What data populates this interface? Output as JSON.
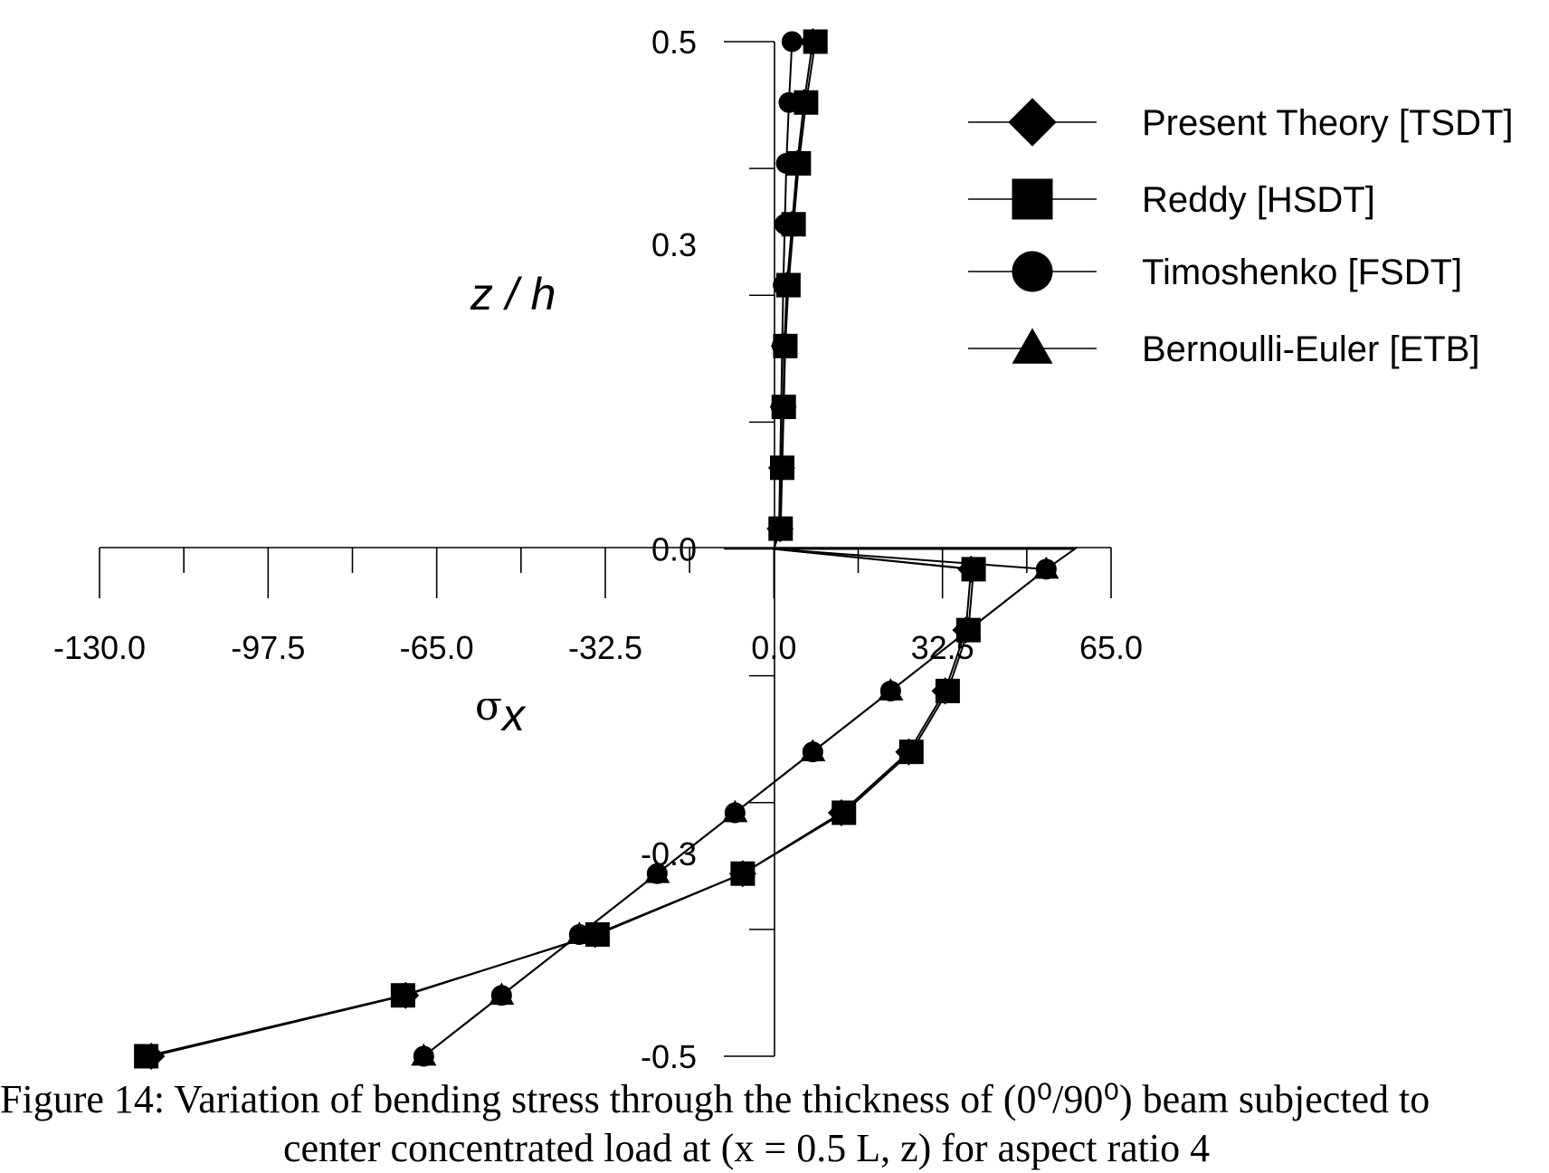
{
  "chart_data": {
    "type": "line",
    "xlabel_symbol": "σ",
    "xlabel_sub": "x",
    "ylabel": "z / h",
    "xlim": [
      -130,
      65
    ],
    "ylim": [
      -0.5,
      0.5
    ],
    "x_ticks": [
      "-130.0",
      "-97.5",
      "-65.0",
      "-32.5",
      "0.0",
      "32.5",
      "65.0"
    ],
    "x_tick_values": [
      -130,
      -97.5,
      -65,
      -32.5,
      0,
      32.5,
      65
    ],
    "y_ticks": [
      "0.5",
      "0.3",
      "0.0",
      "-0.3",
      "-0.5"
    ],
    "y_tick_values": [
      0.5,
      0.3,
      0.0,
      -0.3,
      -0.5
    ],
    "y_minor_tick_values": [
      0.5,
      0.375,
      0.25,
      0.125,
      0.0,
      -0.125,
      -0.25,
      -0.375,
      -0.5
    ],
    "x_minor_tick_values": [
      -130,
      -113.75,
      -97.5,
      -81.25,
      -65,
      -48.75,
      -32.5,
      -16.25,
      0,
      16.25,
      32.5,
      48.75,
      65
    ],
    "legend_position": "top-right",
    "series": [
      {
        "name": "Present Theory [TSDT]",
        "marker": "diamond",
        "points": [
          [
            7.5,
            0.5
          ],
          [
            5.8,
            0.44
          ],
          [
            4.5,
            0.38
          ],
          [
            3.5,
            0.32
          ],
          [
            2.5,
            0.26
          ],
          [
            2.0,
            0.2
          ],
          [
            1.8,
            0.14
          ],
          [
            1.5,
            0.08
          ],
          [
            1.2,
            0.02
          ],
          [
            0,
            0
          ],
          [
            38.0,
            -0.02
          ],
          [
            37.0,
            -0.08
          ],
          [
            33.0,
            -0.14
          ],
          [
            26.0,
            -0.2
          ],
          [
            13.0,
            -0.26
          ],
          [
            -6.0,
            -0.32
          ],
          [
            -34.5,
            -0.38
          ],
          [
            -71.0,
            -0.44
          ],
          [
            -120.0,
            -0.5
          ]
        ]
      },
      {
        "name": "Reddy [HSDT]",
        "marker": "square",
        "points": [
          [
            8.0,
            0.5
          ],
          [
            6.2,
            0.44
          ],
          [
            4.8,
            0.38
          ],
          [
            3.8,
            0.32
          ],
          [
            2.8,
            0.26
          ],
          [
            2.2,
            0.2
          ],
          [
            1.9,
            0.14
          ],
          [
            1.6,
            0.08
          ],
          [
            1.3,
            0.02
          ],
          [
            0,
            0
          ],
          [
            38.5,
            -0.02
          ],
          [
            37.5,
            -0.08
          ],
          [
            33.5,
            -0.14
          ],
          [
            26.5,
            -0.2
          ],
          [
            13.5,
            -0.26
          ],
          [
            -6.0,
            -0.32
          ],
          [
            -34.0,
            -0.38
          ],
          [
            -71.5,
            -0.44
          ],
          [
            -121.0,
            -0.5
          ]
        ]
      },
      {
        "name": "Timoshenko [FSDT]",
        "marker": "circle",
        "points": [
          [
            3.5,
            0.5
          ],
          [
            2.9,
            0.44
          ],
          [
            2.4,
            0.38
          ],
          [
            2.1,
            0.32
          ],
          [
            1.8,
            0.26
          ],
          [
            1.6,
            0.2
          ],
          [
            1.4,
            0.14
          ],
          [
            1.2,
            0.08
          ],
          [
            1.0,
            0.02
          ],
          [
            0,
            0
          ],
          [
            52.5,
            -0.02
          ],
          [
            37.5,
            -0.08
          ],
          [
            22.5,
            -0.14
          ],
          [
            7.5,
            -0.2
          ],
          [
            -7.5,
            -0.26
          ],
          [
            -22.5,
            -0.32
          ],
          [
            -37.5,
            -0.38
          ],
          [
            -52.5,
            -0.44
          ],
          [
            -67.5,
            -0.5
          ]
        ]
      },
      {
        "name": "Bernoulli-Euler [ETB]",
        "marker": "triangle",
        "points": [
          [
            0,
            0
          ],
          [
            58.0,
            0
          ],
          [
            52.5,
            -0.02
          ],
          [
            37.5,
            -0.08
          ],
          [
            22.5,
            -0.14
          ],
          [
            7.5,
            -0.2
          ],
          [
            -7.5,
            -0.26
          ],
          [
            -22.5,
            -0.32
          ],
          [
            -37.5,
            -0.38
          ],
          [
            -52.5,
            -0.44
          ],
          [
            -67.5,
            -0.5
          ]
        ]
      }
    ]
  },
  "caption": {
    "line1": "Figure 14: Variation of bending stress through the thickness of (0⁰/90⁰) beam subjected to",
    "line2": "center concentrated load at (x = 0.5 L, z) for aspect ratio 4"
  }
}
